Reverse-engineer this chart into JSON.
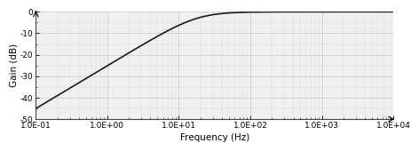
{
  "title": "",
  "xlabel": "Frequency (Hz)",
  "ylabel": "Gain (dB)",
  "xlim": [
    0.1,
    10000
  ],
  "ylim": [
    -50,
    0
  ],
  "yticks": [
    0,
    -10,
    -20,
    -30,
    -40,
    -50
  ],
  "xtick_labels": [
    "1.0E-01",
    "1.0E+00",
    "1.0E+01",
    "1.0E+02",
    "1.0E+03",
    "1.0E+04"
  ],
  "xtick_positions": [
    0.1,
    1.0,
    10.0,
    100.0,
    1000.0,
    10000.0
  ],
  "line_color": "#1a1a1a",
  "line_width": 1.2,
  "grid_major_color": "#c8c8c8",
  "grid_minor_color": "#dcdcdc",
  "background_color": "#f0f0f0",
  "fc_fit": 18.0,
  "label_fontsize": 7.5,
  "tick_fontsize": 6.5
}
